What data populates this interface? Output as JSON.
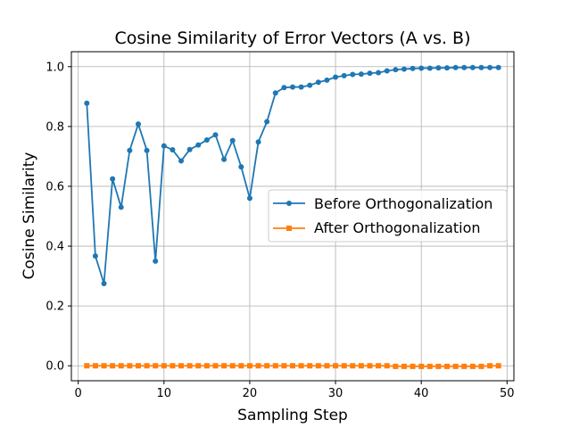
{
  "chart_data": {
    "type": "line",
    "title": "Cosine Similarity of Error Vectors (A vs. B)",
    "xlabel": "Sampling Step",
    "ylabel": "Cosine Similarity",
    "xlim": [
      -0.8,
      50.8
    ],
    "ylim": [
      -0.05,
      1.05
    ],
    "xticks": [
      0,
      10,
      20,
      30,
      40,
      50
    ],
    "yticks": [
      0.0,
      0.2,
      0.4,
      0.6,
      0.8,
      1.0
    ],
    "xtick_labels": [
      "0",
      "10",
      "20",
      "30",
      "40",
      "50"
    ],
    "ytick_labels": [
      "0.0",
      "0.2",
      "0.4",
      "0.6",
      "0.8",
      "1.0"
    ],
    "grid": true,
    "legend_position": "center-right",
    "x": [
      1,
      2,
      3,
      4,
      5,
      6,
      7,
      8,
      9,
      10,
      11,
      12,
      13,
      14,
      15,
      16,
      17,
      18,
      19,
      20,
      21,
      22,
      23,
      24,
      25,
      26,
      27,
      28,
      29,
      30,
      31,
      32,
      33,
      34,
      35,
      36,
      37,
      38,
      39,
      40,
      41,
      42,
      43,
      44,
      45,
      46,
      47,
      48,
      49
    ],
    "series": [
      {
        "name": "Before Orthogonalization",
        "color": "#1f77b4",
        "marker": "circle",
        "values": [
          0.878,
          0.367,
          0.275,
          0.625,
          0.53,
          0.72,
          0.808,
          0.72,
          0.35,
          0.735,
          0.722,
          0.685,
          0.723,
          0.738,
          0.755,
          0.772,
          0.69,
          0.753,
          0.665,
          0.56,
          0.748,
          0.816,
          0.912,
          0.93,
          0.932,
          0.932,
          0.938,
          0.948,
          0.955,
          0.965,
          0.97,
          0.974,
          0.975,
          0.978,
          0.98,
          0.986,
          0.99,
          0.992,
          0.994,
          0.995,
          0.995,
          0.996,
          0.996,
          0.997,
          0.997,
          0.997,
          0.997,
          0.997,
          0.997
        ]
      },
      {
        "name": "After Orthogonalization",
        "color": "#ff7f0e",
        "marker": "square",
        "values": [
          0.0,
          0.0,
          0.0,
          0.0,
          0.0,
          0.0,
          0.0,
          0.0,
          0.0,
          0.0,
          0.0,
          0.0,
          0.0,
          0.0,
          0.0,
          0.0,
          0.0,
          0.0,
          0.0,
          0.0,
          0.0,
          0.0,
          0.0,
          0.0,
          0.0,
          0.0,
          0.0,
          0.0,
          0.0,
          0.0,
          0.0,
          0.0,
          0.0,
          0.0,
          0.0,
          0.0,
          -0.002,
          -0.002,
          -0.002,
          -0.002,
          -0.002,
          -0.002,
          -0.002,
          -0.002,
          -0.002,
          -0.002,
          -0.002,
          0.0,
          0.0
        ]
      }
    ]
  }
}
